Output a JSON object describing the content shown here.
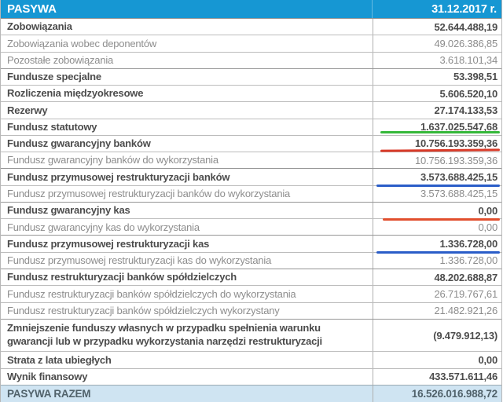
{
  "table": {
    "header": {
      "title": "PASYWA",
      "date_column": "31.12.2017 r."
    },
    "rows": [
      {
        "label": "Zobowiązania",
        "value": "52.644.488,19",
        "bold": true
      },
      {
        "label": "Zobowiązania wobec deponentów",
        "value": "49.026.386,85",
        "bold": false
      },
      {
        "label": "Pozostałe zobowiązania",
        "value": "3.618.101,34",
        "bold": false
      },
      {
        "label": "Fundusze specjalne",
        "value": "53.398,51",
        "bold": true
      },
      {
        "label": "Rozliczenia międzyokresowe",
        "value": "5.606.520,10",
        "bold": true
      },
      {
        "label": "Rezerwy",
        "value": "27.174.133,53",
        "bold": true
      },
      {
        "label": "Fundusz statutowy",
        "value": "1.637.025.547,68",
        "bold": true,
        "underline": "green"
      },
      {
        "label": "Fundusz gwarancyjny banków",
        "value": "10.756.193.359,36",
        "bold": true,
        "underline": "red"
      },
      {
        "label": "Fundusz gwarancyjny banków do wykorzystania",
        "value": "10.756.193.359,36",
        "bold": false
      },
      {
        "label": "Fundusz przymusowej restrukturyzacji banków",
        "value": "3.573.688.425,15",
        "bold": true,
        "underline": "blue"
      },
      {
        "label": "Fundusz przymusowej restrukturyzacji banków do wykorzystania",
        "value": "3.573.688.425,15",
        "bold": false
      },
      {
        "label": "Fundusz gwarancyjny kas",
        "value": "0,00",
        "bold": true,
        "underline": "orange"
      },
      {
        "label": "Fundusz gwarancyjny kas do wykorzystania",
        "value": "0,00",
        "bold": false
      },
      {
        "label": "Fundusz przymusowej restrukturyzacji kas",
        "value": "1.336.728,00",
        "bold": true,
        "underline": "blue"
      },
      {
        "label": "Fundusz przymusowej restrukturyzacji kas do wykorzystania",
        "value": "1.336.728,00",
        "bold": false
      },
      {
        "label": "Fundusz restrukturyzacji banków spółdzielczych",
        "value": "48.202.688,87",
        "bold": true
      },
      {
        "label": "Fundusz restrukturyzacji banków spółdzielczych do wykorzystania",
        "value": "26.719.767,61",
        "bold": false
      },
      {
        "label": "Fundusz restrukturyzacji banków spółdzielczych wykorzystany",
        "value": "21.482.921,26",
        "bold": false
      },
      {
        "label": "Zmniejszenie funduszy własnych w przypadku spełnienia warunku gwarancji lub w przypadku wykorzystania narzędzi restrukturyzacji",
        "value": "(9.479.912,13)",
        "bold": true,
        "tall": true
      },
      {
        "label": "Strata z lata ubiegłych",
        "value": "0,00",
        "bold": true
      },
      {
        "label": "Wynik finansowy",
        "value": "433.571.611,46",
        "bold": true
      }
    ],
    "footer": {
      "label": "PASYWA RAZEM",
      "value": "16.526.016.988,72"
    }
  },
  "colors": {
    "header_bg": "#1697d3",
    "header_text": "#ffffff",
    "footer_bg": "#cfe4f2",
    "annotation_green": "#35b83a",
    "annotation_red": "#d93a28",
    "annotation_blue": "#2a5dc8",
    "annotation_orange": "#e14e2d"
  }
}
